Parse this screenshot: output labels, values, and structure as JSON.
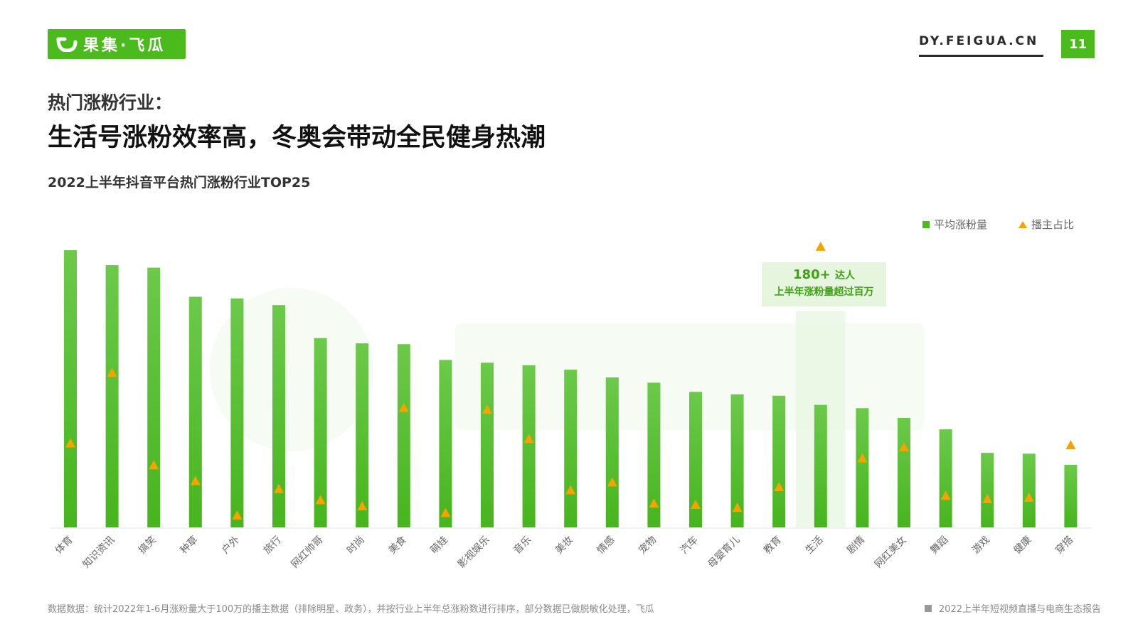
{
  "brand": {
    "logo_text": "果集·飞瓜",
    "site": "DY.FEIGUA.CN",
    "page_number": "11",
    "accent": "#4bba1c"
  },
  "header": {
    "subtitle": "热门涨粉行业：",
    "title": "生活号涨粉效率高，冬奥会带动全民健身热潮"
  },
  "chart_data": {
    "type": "bar",
    "title": "2022上半年抖音平台热门涨粉行业TOP25",
    "categories": [
      "体育",
      "知识资讯",
      "搞笑",
      "种草",
      "户外",
      "旅行",
      "网红帅哥",
      "时尚",
      "美食",
      "萌娃",
      "影视娱乐",
      "音乐",
      "美妆",
      "情感",
      "宠物",
      "汽车",
      "母婴育儿",
      "教育",
      "生活",
      "剧情",
      "网红美女",
      "舞蹈",
      "游戏",
      "健康",
      "穿搭"
    ],
    "series": [
      {
        "name": "平均涨粉量",
        "type": "bar",
        "color": "#4bba1c",
        "values": [
          100,
          94.6,
          93.7,
          83.2,
          82.6,
          80.2,
          68.3,
          66.4,
          66.1,
          60.4,
          59.4,
          58.5,
          56.9,
          54.1,
          52.2,
          48.9,
          48.0,
          47.5,
          44.2,
          43.0,
          39.5,
          35.4,
          26.9,
          26.6,
          22.6
        ]
      },
      {
        "name": "播主占比",
        "type": "marker",
        "color": "#f5a300",
        "values": [
          30.4,
          55.8,
          22.5,
          16.8,
          4.4,
          13.9,
          9.9,
          7.7,
          43.2,
          5.3,
          42.5,
          32.0,
          13.5,
          16.3,
          8.7,
          8.2,
          7.1,
          14.6,
          101.3,
          25.0,
          29.0,
          11.5,
          10.3,
          10.8,
          29.7
        ]
      }
    ],
    "ylim": [
      0,
      105
    ],
    "highlight": {
      "category": "生活",
      "line1_number": "180+",
      "line1_suffix": "达人",
      "line2": "上半年涨粉量超过百万"
    }
  },
  "footer": {
    "source": "数据数据：统计2022年1-6月涨粉量大于100万的播主数据（排除明星、政务），并按行业上半年总涨粉数进行排序，部分数据已做脱敏化处理，飞瓜",
    "report": "2022上半年短视频直播与电商生态报告"
  }
}
